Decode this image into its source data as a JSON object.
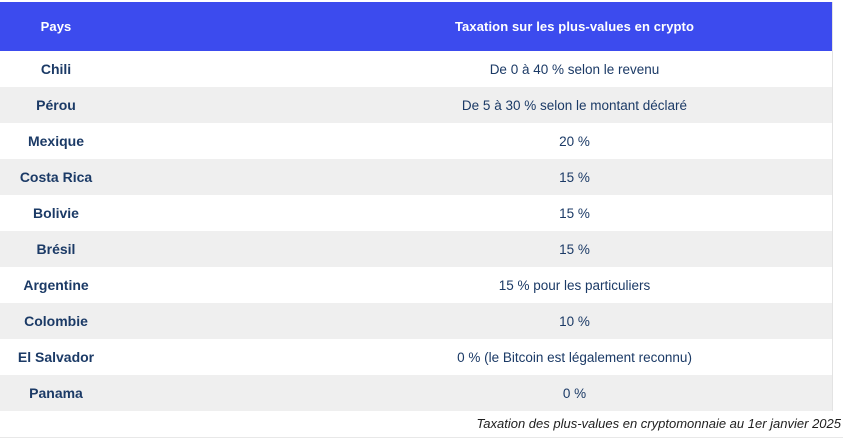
{
  "chart_data": {
    "type": "table",
    "columns": [
      "Pays",
      "Taxation sur les plus-values en crypto"
    ],
    "rows": [
      [
        "Chili",
        "De 0 à 40 % selon le revenu"
      ],
      [
        "Pérou",
        "De 5 à 30 % selon le montant déclaré"
      ],
      [
        "Mexique",
        "20 %"
      ],
      [
        "Costa Rica",
        "15 %"
      ],
      [
        "Bolivie",
        "15 %"
      ],
      [
        "Brésil",
        "15 %"
      ],
      [
        "Argentine",
        "15 % pour les particuliers"
      ],
      [
        "Colombie",
        "10 %"
      ],
      [
        "El Salvador",
        "0 % (le Bitcoin est légalement reconnu)"
      ],
      [
        "Panama",
        "0 %"
      ]
    ],
    "caption": "Taxation des plus-values en cryptomonnaie au 1er janvier 2025",
    "layout": {
      "striped": true,
      "first_stripe": "gray",
      "header_position": "top"
    }
  },
  "colors": {
    "header_bg": "#3c4bee",
    "header_text": "#ffffff",
    "stripe_row_bg": "#efefef",
    "plain_row_bg": "#ffffff",
    "cell_text": "#1b3a66",
    "caption_text": "#1e1e1e",
    "border": "#e3e3e3"
  }
}
